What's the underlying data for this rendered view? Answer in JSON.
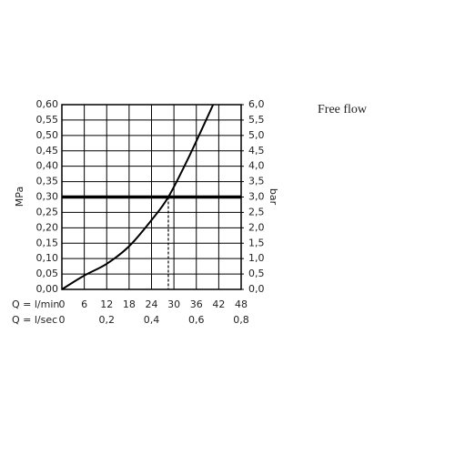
{
  "chart_data": {
    "type": "line",
    "title": "Free flow",
    "ylabel": "MPa",
    "y2label": "bar",
    "xlabel": "Q = l/min",
    "x2label": "Q = l/sec",
    "x": [
      0,
      6,
      12,
      18,
      24,
      28.5,
      34,
      40.5
    ],
    "values": [
      0,
      0.045,
      0.083,
      0.14,
      0.225,
      0.3,
      0.43,
      0.6
    ],
    "color": "#000000",
    "reference_y": 0.3,
    "reference_x": 28.5,
    "xlim": [
      0,
      48
    ],
    "xticks": [
      0,
      6,
      12,
      18,
      24,
      30,
      36,
      42,
      48
    ],
    "x2lim": [
      0,
      0.8
    ],
    "x2ticks": [
      0,
      {
        "value": 0.2,
        "label": "0,2"
      },
      {
        "value": 0.4,
        "label": "0,4"
      },
      {
        "value": 0.6,
        "label": "0,6"
      },
      {
        "value": 0.8,
        "label": "0,8"
      }
    ],
    "ylim": [
      0,
      0.6
    ],
    "yticks": [
      {
        "value": 0,
        "label": "0,00"
      },
      {
        "value": 0.05,
        "label": "0,05"
      },
      {
        "value": 0.1,
        "label": "0,10"
      },
      {
        "value": 0.15,
        "label": "0,15"
      },
      {
        "value": 0.2,
        "label": "0,20"
      },
      {
        "value": 0.25,
        "label": "0,25"
      },
      {
        "value": 0.3,
        "label": "0,30"
      },
      {
        "value": 0.35,
        "label": "0,35"
      },
      {
        "value": 0.4,
        "label": "0,40"
      },
      {
        "value": 0.45,
        "label": "0,45"
      },
      {
        "value": 0.5,
        "label": "0,50"
      },
      {
        "value": 0.55,
        "label": "0,55"
      },
      {
        "value": 0.6,
        "label": "0,60"
      }
    ],
    "y2lim": [
      0,
      6
    ],
    "y2ticks": [
      {
        "value": 0,
        "label": "0,0"
      },
      {
        "value": 0.5,
        "label": "0,5"
      },
      {
        "value": 1,
        "label": "1,0"
      },
      {
        "value": 1.5,
        "label": "1,5"
      },
      {
        "value": 2,
        "label": "2,0"
      },
      {
        "value": 2.5,
        "label": "2,5"
      },
      {
        "value": 3,
        "label": "3,0"
      },
      {
        "value": 3.5,
        "label": "3,5"
      },
      {
        "value": 4,
        "label": "4,0"
      },
      {
        "value": 4.5,
        "label": "4,5"
      },
      {
        "value": 5,
        "label": "5,0"
      },
      {
        "value": 5.5,
        "label": "5,5"
      },
      {
        "value": 6,
        "label": "6,0"
      }
    ],
    "grid": true
  }
}
